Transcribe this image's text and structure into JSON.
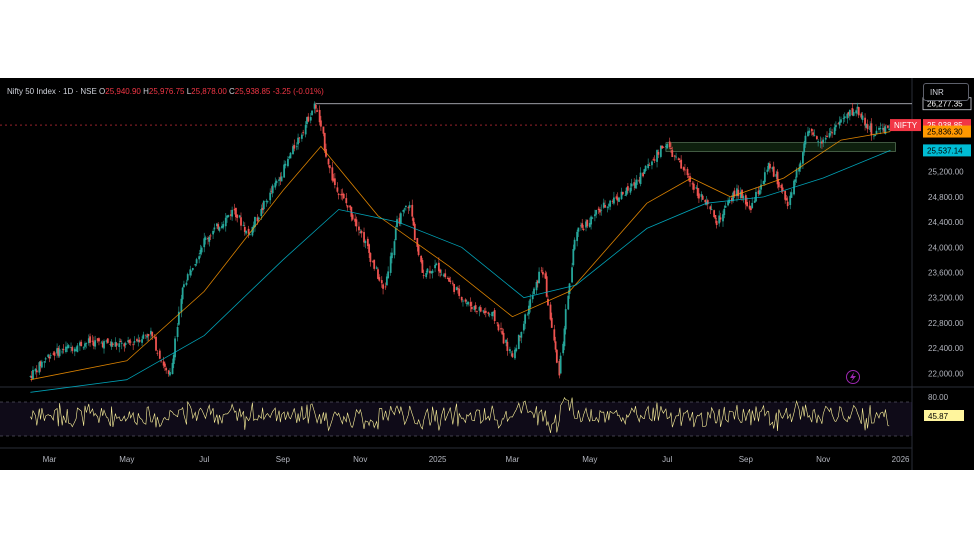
{
  "header": {
    "title": "Nifty 50 Index · 1D · NSE",
    "open_label": "O",
    "open": "25,940.90",
    "high_label": "H",
    "high": "25,976.75",
    "low_label": "L",
    "low": "25,878.00",
    "close_label": "C",
    "close": "25,938.85",
    "change": "-3.25 (-0.01%)"
  },
  "currency_button": "INR",
  "chart_data": {
    "type": "line",
    "title": "Nifty 50 Index · 1D · NSE",
    "symbol": "NIFTY",
    "x_axis_labels": [
      "Mar",
      "May",
      "Jul",
      "Sep",
      "Nov",
      "2025",
      "Mar",
      "May",
      "Jul",
      "Sep",
      "Nov",
      "2026"
    ],
    "y_axis_labels": [
      "26,277.35",
      "25,938.85",
      "25,836.30",
      "25,537.14",
      "25,200.00",
      "24,800.00",
      "24,400.00",
      "24,000.00",
      "23,600.00",
      "23,200.00",
      "22,800.00",
      "22,400.00",
      "22,000.00"
    ],
    "ylim": [
      21800,
      26400
    ],
    "price_path": [
      [
        "2024-02-15",
        21950
      ],
      [
        "2024-03-01",
        22300
      ],
      [
        "2024-04-01",
        22500
      ],
      [
        "2024-05-01",
        22450
      ],
      [
        "2024-05-20",
        22650
      ],
      [
        "2024-06-04",
        21900
      ],
      [
        "2024-06-15",
        23400
      ],
      [
        "2024-07-01",
        24100
      ],
      [
        "2024-07-25",
        24600
      ],
      [
        "2024-08-05",
        24200
      ],
      [
        "2024-09-01",
        25200
      ],
      [
        "2024-09-27",
        26277
      ],
      [
        "2024-10-10",
        25100
      ],
      [
        "2024-11-01",
        24300
      ],
      [
        "2024-11-20",
        23300
      ],
      [
        "2024-12-01",
        24400
      ],
      [
        "2024-12-10",
        24700
      ],
      [
        "2024-12-20",
        23600
      ],
      [
        "2025-01-01",
        23700
      ],
      [
        "2025-01-25",
        23100
      ],
      [
        "2025-02-15",
        22900
      ],
      [
        "2025-03-01",
        22250
      ],
      [
        "2025-03-25",
        23700
      ],
      [
        "2025-04-07",
        22000
      ],
      [
        "2025-04-20",
        24200
      ],
      [
        "2025-05-15",
        24700
      ],
      [
        "2025-06-01",
        24900
      ],
      [
        "2025-06-30",
        25650
      ],
      [
        "2025-07-20",
        25050
      ],
      [
        "2025-08-10",
        24400
      ],
      [
        "2025-08-25",
        24900
      ],
      [
        "2025-09-05",
        24600
      ],
      [
        "2025-09-20",
        25300
      ],
      [
        "2025-10-05",
        24700
      ],
      [
        "2025-10-20",
        25800
      ],
      [
        "2025-11-01",
        25700
      ],
      [
        "2025-11-15",
        26000
      ],
      [
        "2025-11-28",
        26200
      ],
      [
        "2025-12-10",
        25800
      ],
      [
        "2025-12-24",
        25939
      ]
    ],
    "ema_fast": [
      [
        "2024-02-15",
        21900
      ],
      [
        "2024-05-01",
        22200
      ],
      [
        "2024-07-01",
        23300
      ],
      [
        "2024-09-01",
        24900
      ],
      [
        "2024-10-01",
        25600
      ],
      [
        "2024-11-15",
        24500
      ],
      [
        "2025-01-10",
        23700
      ],
      [
        "2025-03-01",
        22900
      ],
      [
        "2025-04-15",
        23300
      ],
      [
        "2025-06-15",
        24700
      ],
      [
        "2025-07-20",
        25100
      ],
      [
        "2025-08-20",
        24800
      ],
      [
        "2025-10-01",
        25100
      ],
      [
        "2025-11-15",
        25700
      ],
      [
        "2025-12-24",
        25836
      ]
    ],
    "ema_slow": [
      [
        "2024-02-15",
        21700
      ],
      [
        "2024-05-01",
        21900
      ],
      [
        "2024-07-01",
        22600
      ],
      [
        "2024-09-01",
        23800
      ],
      [
        "2024-10-15",
        24600
      ],
      [
        "2024-12-01",
        24400
      ],
      [
        "2025-01-20",
        24000
      ],
      [
        "2025-03-10",
        23200
      ],
      [
        "2025-04-20",
        23400
      ],
      [
        "2025-06-15",
        24300
      ],
      [
        "2025-08-01",
        24700
      ],
      [
        "2025-09-15",
        24800
      ],
      [
        "2025-11-01",
        25100
      ],
      [
        "2025-12-24",
        25537
      ]
    ],
    "resistance_line": 26277.35,
    "last_price": 25938.85,
    "ema_fast_last": 25836.3,
    "ema_slow_last": 25537.14,
    "rsi": {
      "upper_label": "80.00",
      "value": "45.87"
    },
    "colors": {
      "up": "#26a69a",
      "down": "#ef5350",
      "ema_fast": "#ff9800",
      "ema_slow": "#00bcd4",
      "rsi": "#fff59d",
      "background": "#000000",
      "last_price": "#f23645"
    }
  }
}
